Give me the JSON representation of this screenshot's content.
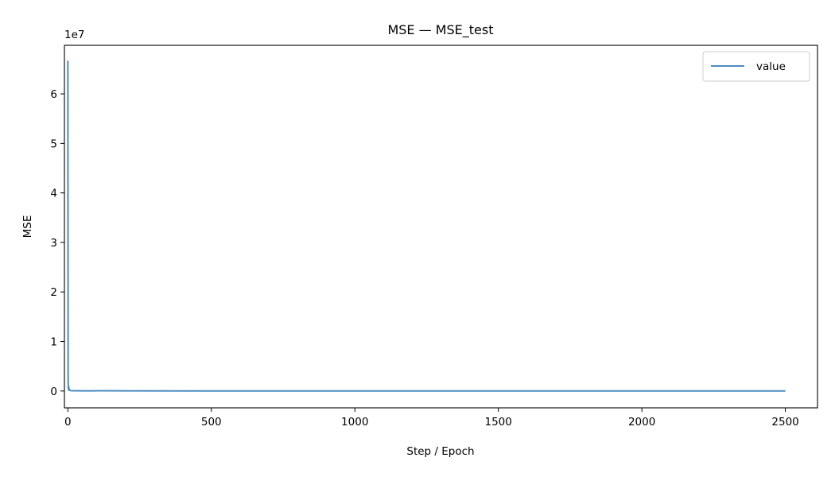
{
  "chart_data": {
    "type": "line",
    "title": "MSE — MSE_test",
    "xlabel": "Step / Epoch",
    "ylabel": "MSE",
    "y_offset_label": "1e7",
    "xlim": [
      -12,
      2612
    ],
    "ylim": [
      -3400000,
      69800000
    ],
    "x_ticks": [
      0,
      500,
      1000,
      1500,
      2000,
      2500
    ],
    "x_tick_labels": [
      "0",
      "500",
      "1000",
      "1500",
      "2000",
      "2500"
    ],
    "y_ticks": [
      0,
      10000000,
      20000000,
      30000000,
      40000000,
      50000000,
      60000000
    ],
    "y_tick_labels": [
      "0",
      "1",
      "2",
      "3",
      "4",
      "5",
      "6"
    ],
    "grid": false,
    "legend_position": "top-right",
    "series": [
      {
        "name": "value",
        "color": "#4c8bbf",
        "x": [
          0,
          1,
          2,
          3,
          4,
          5,
          6,
          8,
          10,
          15,
          20,
          30,
          50,
          80,
          120,
          200,
          500,
          1000,
          1500,
          2000,
          2500
        ],
        "y": [
          66700000,
          1500000,
          300000,
          900000,
          200000,
          400000,
          150000,
          100000,
          80000,
          60000,
          50000,
          45000,
          40000,
          35000,
          60000,
          30000,
          20000,
          15000,
          12000,
          10000,
          8000
        ]
      }
    ]
  }
}
